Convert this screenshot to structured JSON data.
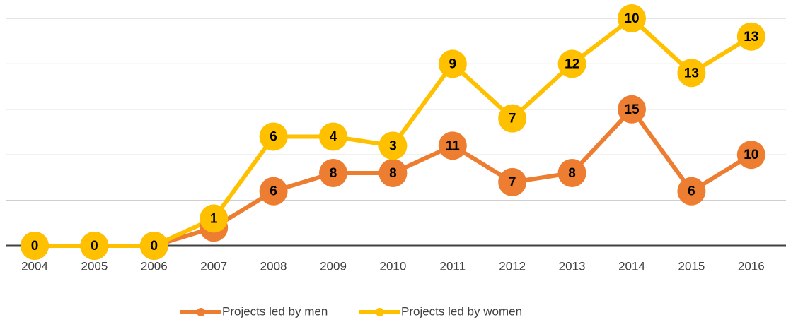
{
  "chart_data": {
    "type": "line",
    "stacked": true,
    "categories": [
      "2004",
      "2005",
      "2006",
      "2007",
      "2008",
      "2009",
      "2010",
      "2011",
      "2012",
      "2013",
      "2014",
      "2015",
      "2016"
    ],
    "series": [
      {
        "name": "Projects led by men",
        "color": "#ED7D31",
        "values": [
          0,
          0,
          0,
          2,
          6,
          8,
          8,
          11,
          7,
          8,
          15,
          6,
          10
        ]
      },
      {
        "name": "Projects led by women",
        "color": "#FFC000",
        "values": [
          0,
          0,
          0,
          1,
          6,
          4,
          3,
          9,
          7,
          12,
          10,
          13,
          13
        ]
      }
    ],
    "ylim": [
      0,
      25
    ],
    "yticks": [
      0,
      5,
      10,
      15,
      20,
      25
    ],
    "grid": true,
    "legend": "bottom"
  }
}
